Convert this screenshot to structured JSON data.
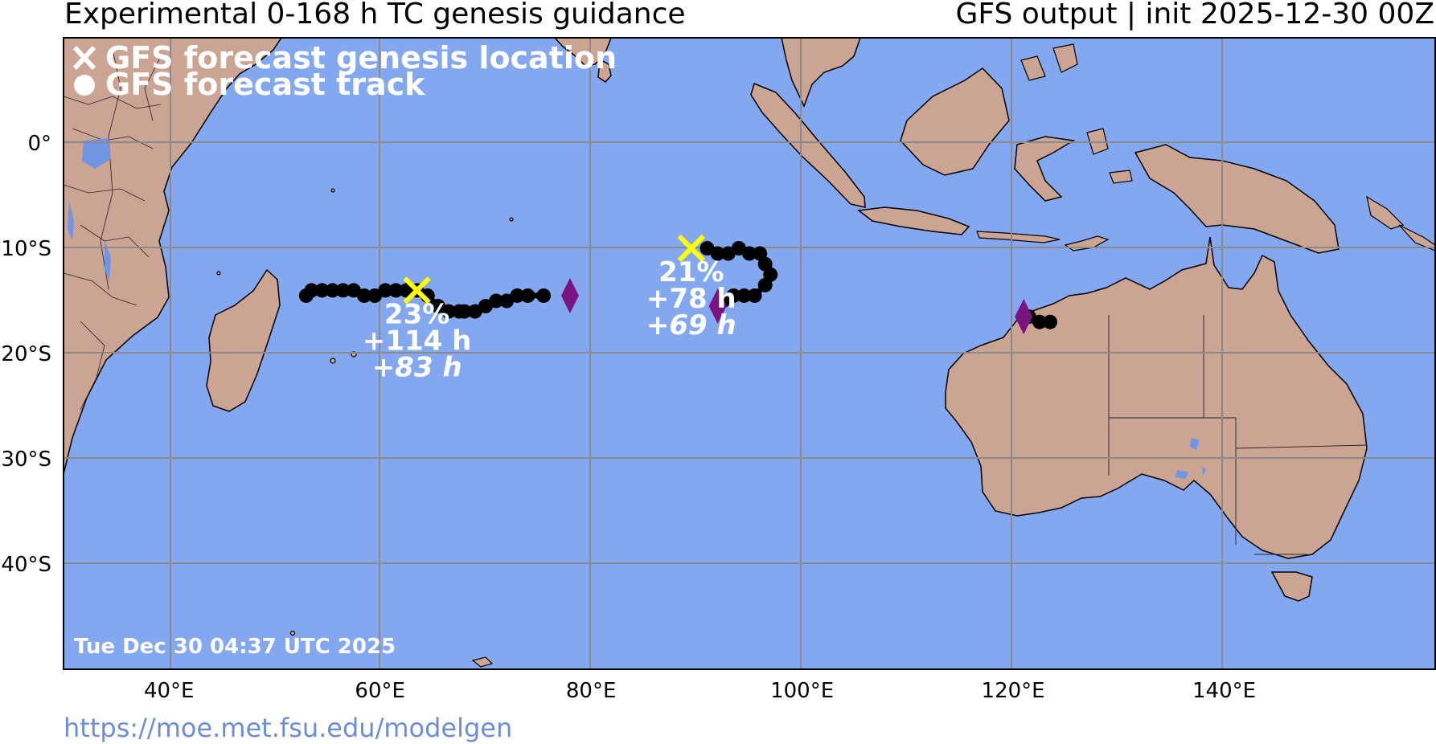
{
  "header": {
    "title_left": "Experimental 0-168 h TC genesis guidance",
    "title_right": "GFS output | init 2025-12-30 00Z"
  },
  "footer": {
    "url": "https://moe.met.fsu.edu/modelgen"
  },
  "map": {
    "extent": {
      "lon": [
        30,
        160
      ],
      "lat": [
        -50,
        10
      ]
    },
    "ocean_color": "#84a8ef",
    "land_color": "#cba494",
    "grid_color": "#8a8a8a",
    "lon_ticks": [
      {
        "lon": 40,
        "label": "40°E"
      },
      {
        "lon": 60,
        "label": "60°E"
      },
      {
        "lon": 80,
        "label": "80°E"
      },
      {
        "lon": 100,
        "label": "100°E"
      },
      {
        "lon": 120,
        "label": "120°E"
      },
      {
        "lon": 140,
        "label": "140°E"
      }
    ],
    "lat_ticks": [
      {
        "lat": 0,
        "label": "0°"
      },
      {
        "lat": -10,
        "label": "10°S"
      },
      {
        "lat": -20,
        "label": "20°S"
      },
      {
        "lat": -30,
        "label": "30°S"
      },
      {
        "lat": -40,
        "label": "40°S"
      }
    ],
    "timestamp": "Tue Dec 30 04:37 UTC 2025"
  },
  "legend": {
    "genesis_label": "GFS forecast genesis location",
    "track_label": "GFS forecast track"
  },
  "systems": [
    {
      "genesis": {
        "lon": 63.5,
        "lat": -14.0
      },
      "probability": "23%",
      "lead_genesis": "+114 h",
      "lead_other": "+83 h",
      "track_color": "#000000",
      "track": [
        [
          53.0,
          -14.5
        ],
        [
          53.5,
          -14.0
        ],
        [
          54.5,
          -14.0
        ],
        [
          55.5,
          -14.0
        ],
        [
          56.5,
          -14.0
        ],
        [
          57.5,
          -14.0
        ],
        [
          58.5,
          -14.5
        ],
        [
          59.5,
          -14.5
        ],
        [
          60.5,
          -14.0
        ],
        [
          61.5,
          -14.0
        ],
        [
          62.5,
          -14.0
        ],
        [
          63.5,
          -14.0
        ],
        [
          64.5,
          -14.5
        ],
        [
          65.5,
          -15.5
        ],
        [
          66.5,
          -16.0
        ],
        [
          67.5,
          -16.0
        ],
        [
          68.0,
          -16.0
        ],
        [
          69.0,
          -16.0
        ],
        [
          70.0,
          -15.5
        ],
        [
          71.0,
          -15.0
        ],
        [
          72.0,
          -15.0
        ],
        [
          73.0,
          -14.5
        ],
        [
          74.0,
          -14.5
        ],
        [
          75.5,
          -14.5
        ]
      ],
      "end_marker": {
        "lon": 78.0,
        "lat": -14.5
      }
    },
    {
      "genesis": {
        "lon": 89.5,
        "lat": -10.0
      },
      "probability": "21%",
      "lead_genesis": "+78 h",
      "lead_other": "+69 h",
      "track_color": "#000000",
      "track": [
        [
          91.0,
          -10.0
        ],
        [
          92.0,
          -10.5
        ],
        [
          93.0,
          -10.5
        ],
        [
          94.0,
          -10.0
        ],
        [
          95.0,
          -10.5
        ],
        [
          96.0,
          -10.5
        ],
        [
          96.5,
          -11.5
        ],
        [
          97.0,
          -12.5
        ],
        [
          96.5,
          -13.5
        ],
        [
          95.5,
          -14.5
        ],
        [
          94.5,
          -14.5
        ],
        [
          93.5,
          -14.5
        ],
        [
          92.5,
          -15.0
        ]
      ],
      "end_marker": {
        "lon": 92.0,
        "lat": -15.5
      }
    },
    {
      "genesis": null,
      "track_color": "#000000",
      "track": [
        [
          121.5,
          -16.5
        ],
        [
          122.5,
          -17.0
        ],
        [
          123.5,
          -17.0
        ]
      ],
      "end_marker": {
        "lon": 121.0,
        "lat": -16.5
      }
    }
  ],
  "colors": {
    "genesis_marker": "#ffff00",
    "end_marker": "#7a1480",
    "lakes": "#6f95e3"
  }
}
